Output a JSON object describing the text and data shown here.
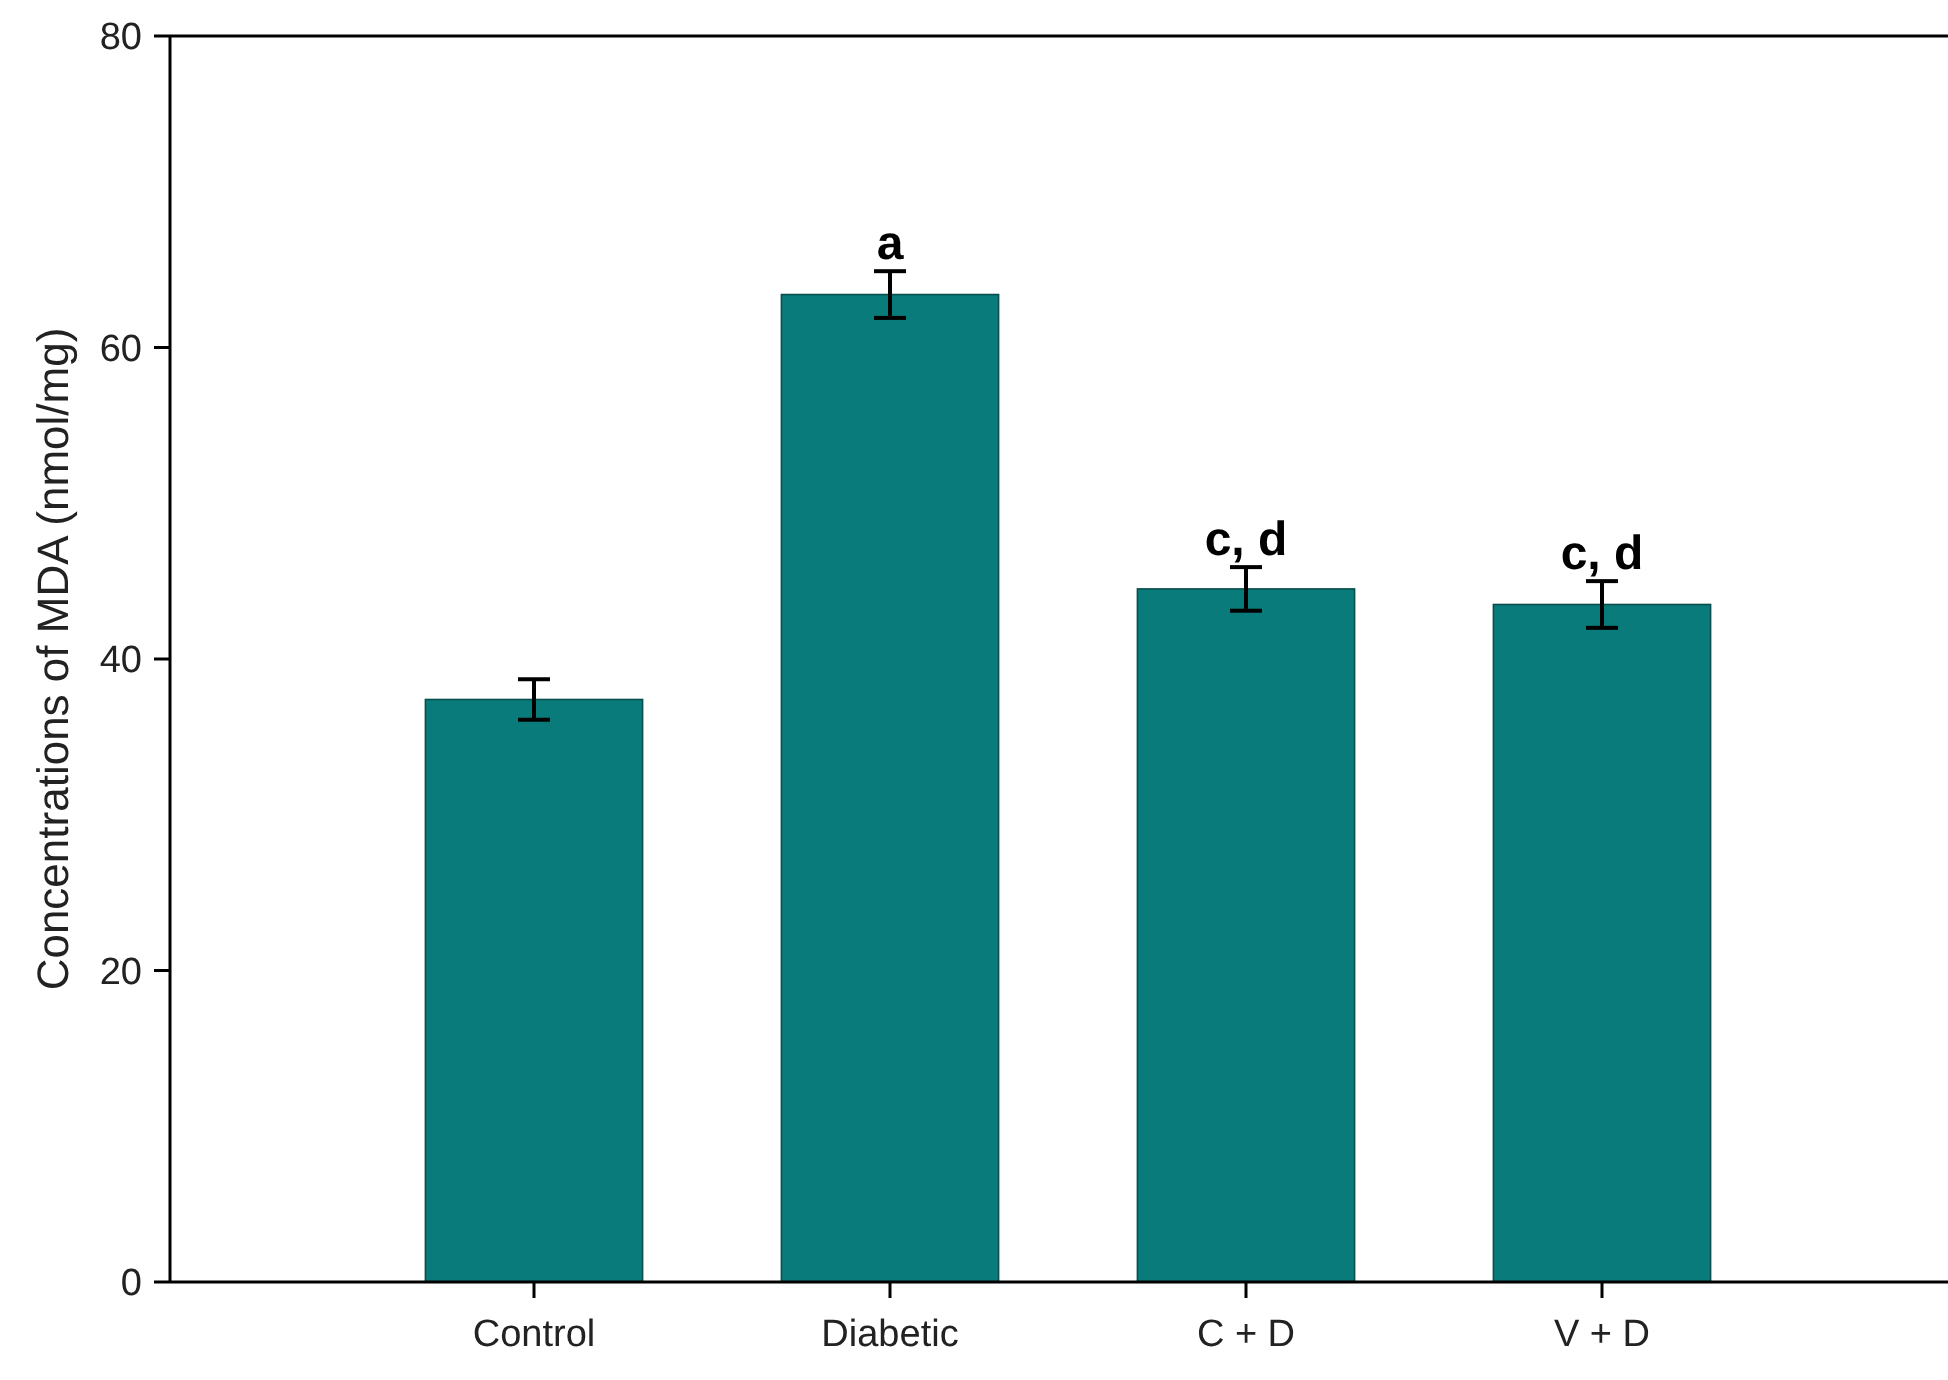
{
  "chart_data": {
    "type": "bar",
    "ylabel": "Concentrations of MDA (nmol/mg)",
    "categories": [
      "Control",
      "Diabetic",
      "C + D",
      "V + D"
    ],
    "values": [
      37.4,
      63.4,
      44.5,
      43.5
    ],
    "errors": [
      1.3,
      1.5,
      1.4,
      1.5
    ],
    "color": "#097b7a",
    "ylim": [
      0,
      80
    ],
    "yticks": [
      0,
      20,
      40,
      60,
      80
    ],
    "grid": false,
    "annotations": [
      {
        "text": "a",
        "x": "Diabetic",
        "y": 64.9
      },
      {
        "text": "c, d",
        "x": "C + D",
        "y": 45.9
      },
      {
        "text": "c, d",
        "x": "V + D",
        "y": 45.0
      }
    ]
  }
}
